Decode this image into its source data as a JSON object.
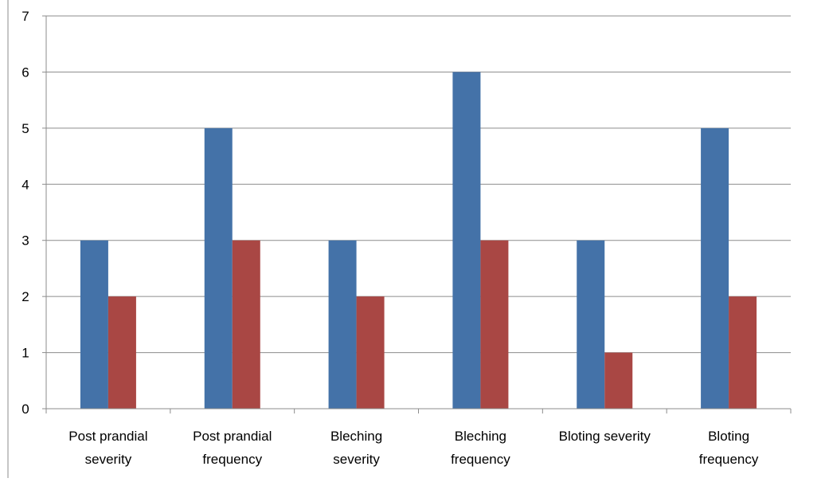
{
  "chart_data": {
    "type": "bar",
    "title": "",
    "xlabel": "",
    "ylabel": "",
    "categories": [
      [
        "Post prandial",
        "severity"
      ],
      [
        "Post prandial",
        "frequency"
      ],
      [
        "Bleching",
        "severity"
      ],
      [
        "Bleching",
        "frequency"
      ],
      [
        "Bloting severity"
      ],
      [
        "Bloting",
        "frequency"
      ]
    ],
    "series": [
      {
        "values": [
          3,
          5,
          3,
          6,
          3,
          5
        ],
        "color": "#4472A8"
      },
      {
        "values": [
          2,
          3,
          2,
          3,
          1,
          2
        ],
        "color": "#A94744"
      }
    ],
    "ylim": [
      0,
      7
    ],
    "yticks": [
      "0",
      "1",
      "2",
      "3",
      "4",
      "5",
      "6",
      "7"
    ],
    "grid": true,
    "legend": "none"
  }
}
